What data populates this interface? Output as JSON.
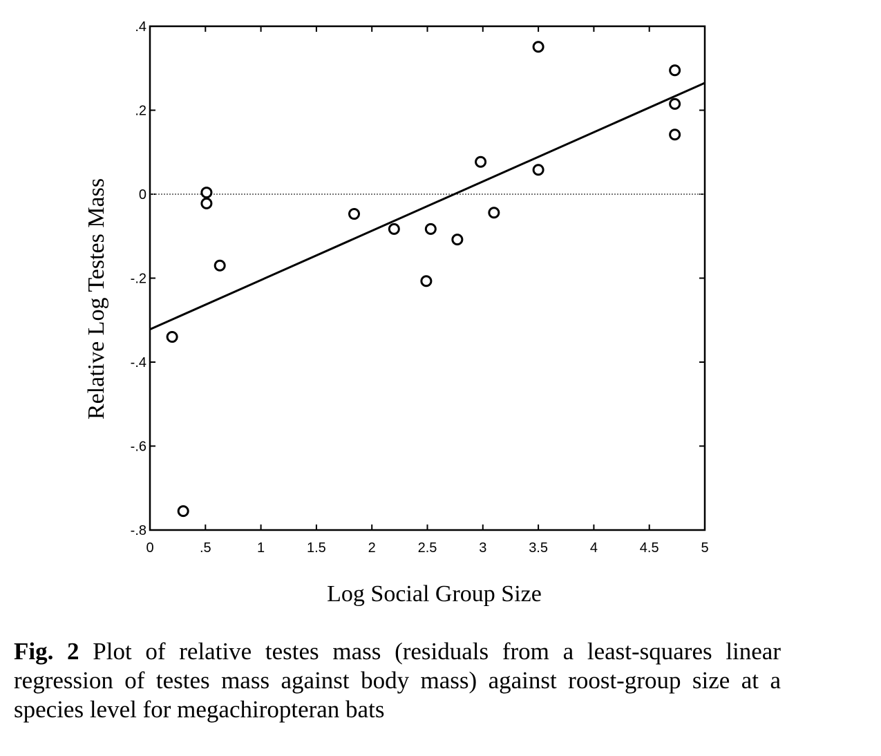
{
  "chart_data": {
    "type": "scatter",
    "xlabel": "Log Social Group Size",
    "ylabel": "Relative Log Testes Mass",
    "xlim": [
      0,
      5
    ],
    "ylim": [
      -0.8,
      0.4
    ],
    "x_ticks": [
      {
        "value": 0,
        "label": "0"
      },
      {
        "value": 0.5,
        "label": ".5"
      },
      {
        "value": 1,
        "label": "1"
      },
      {
        "value": 1.5,
        "label": "1.5"
      },
      {
        "value": 2,
        "label": "2"
      },
      {
        "value": 2.5,
        "label": "2.5"
      },
      {
        "value": 3,
        "label": "3"
      },
      {
        "value": 3.5,
        "label": "3.5"
      },
      {
        "value": 4,
        "label": "4"
      },
      {
        "value": 4.5,
        "label": "4.5"
      },
      {
        "value": 5,
        "label": "5"
      }
    ],
    "y_ticks": [
      {
        "value": 0.4,
        "label": ".4"
      },
      {
        "value": 0.2,
        "label": ".2"
      },
      {
        "value": 0,
        "label": "0"
      },
      {
        "value": -0.2,
        "label": "-.2"
      },
      {
        "value": -0.4,
        "label": "-.4"
      },
      {
        "value": -0.6,
        "label": "-.6"
      },
      {
        "value": -0.8,
        "label": "-.8"
      }
    ],
    "grid": false,
    "reference_line": {
      "y": 0,
      "style": "dotted"
    },
    "points": [
      {
        "x": 0.2,
        "y": -0.34
      },
      {
        "x": 0.3,
        "y": -0.755
      },
      {
        "x": 0.51,
        "y": 0.004
      },
      {
        "x": 0.51,
        "y": -0.022
      },
      {
        "x": 0.63,
        "y": -0.17
      },
      {
        "x": 1.84,
        "y": -0.047
      },
      {
        "x": 2.2,
        "y": -0.083
      },
      {
        "x": 2.49,
        "y": -0.207
      },
      {
        "x": 2.53,
        "y": -0.083
      },
      {
        "x": 2.77,
        "y": -0.108
      },
      {
        "x": 2.98,
        "y": 0.077
      },
      {
        "x": 3.1,
        "y": -0.044
      },
      {
        "x": 3.5,
        "y": 0.058
      },
      {
        "x": 3.5,
        "y": 0.351
      },
      {
        "x": 4.73,
        "y": 0.295
      },
      {
        "x": 4.73,
        "y": 0.215
      },
      {
        "x": 4.73,
        "y": 0.142
      }
    ],
    "regression_line": {
      "x0": 0,
      "y0": -0.322,
      "x1": 5,
      "y1": 0.265
    }
  },
  "caption": {
    "label": "Fig. 2",
    "text": "Plot of relative testes mass (residuals from a least-squares linear regression of testes mass against body mass) against roost-group size at a species level for megachiropteran bats"
  }
}
